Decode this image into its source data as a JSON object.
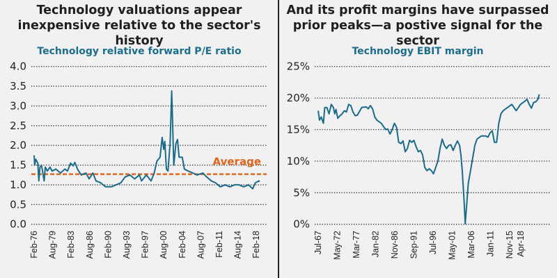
{
  "chart_data": [
    {
      "type": "line",
      "title": "Technology valuations appear inexpensive relative to the sector's history",
      "subtitle": "Technology relative forward P/E ratio",
      "xlabel": "",
      "ylabel": "",
      "ylim": [
        0,
        4
      ],
      "yticks": [
        "0.0",
        "0.5",
        "1.0",
        "1.5",
        "2.0",
        "2.5",
        "3.0",
        "3.5",
        "4.0"
      ],
      "xticks": [
        "Feb-76",
        "Aug-79",
        "Feb-83",
        "Aug-86",
        "Feb-90",
        "Aug-93",
        "Feb-97",
        "Aug-00",
        "Feb-04",
        "Aug-07",
        "Feb-11",
        "Aug-14",
        "Feb-18"
      ],
      "grid": true,
      "color": "#1b6a8a",
      "reference_line": {
        "label": "Average",
        "value": 1.27,
        "color": "#e0661f"
      },
      "series": [
        {
          "name": "Technology relative forward P/E ratio",
          "x": [
            1976.1,
            1976.2,
            1976.4,
            1976.8,
            1977.0,
            1977.2,
            1977.5,
            1978.0,
            1978.2,
            1978.6,
            1979.1,
            1979.5,
            1980.2,
            1981.1,
            1981.9,
            1982.4,
            1983.0,
            1983.5,
            1983.8,
            1984.3,
            1985.0,
            1985.9,
            1986.5,
            1987.2,
            1987.8,
            1988.7,
            1989.6,
            1990.7,
            1991.6,
            1992.5,
            1993.3,
            1994.2,
            1995.1,
            1996.0,
            1996.4,
            1997.3,
            1998.2,
            1998.8,
            1999.3,
            1999.9,
            2000.3,
            2000.6,
            2000.8,
            2001.1,
            2001.4,
            2001.8,
            2002.1,
            2002.5,
            2002.9,
            2003.2,
            2003.5,
            2004.1,
            2004.5,
            2005.2,
            2006.1,
            2006.9,
            2008.0,
            2008.7,
            2009.6,
            2010.4,
            2011.3,
            2012.2,
            2013.1,
            2014.0,
            2014.8,
            2015.7,
            2016.6,
            2017.4,
            2017.9,
            2018.6,
            2018.7
          ],
          "y": [
            1.75,
            1.5,
            1.65,
            1.55,
            1.1,
            1.45,
            1.5,
            1.1,
            1.45,
            1.35,
            1.45,
            1.35,
            1.4,
            1.3,
            1.4,
            1.35,
            1.55,
            1.48,
            1.57,
            1.4,
            1.25,
            1.3,
            1.15,
            1.3,
            1.1,
            1.05,
            0.95,
            0.95,
            1.0,
            1.05,
            1.2,
            1.25,
            1.15,
            1.25,
            1.1,
            1.25,
            1.1,
            1.3,
            1.6,
            1.7,
            2.2,
            1.9,
            2.1,
            1.4,
            1.35,
            2.05,
            3.38,
            1.5,
            2.05,
            2.15,
            1.7,
            1.7,
            1.4,
            1.35,
            1.3,
            1.25,
            1.3,
            1.2,
            1.1,
            1.05,
            0.95,
            1.0,
            0.95,
            1.0,
            1.0,
            0.95,
            1.0,
            0.9,
            1.05,
            1.1,
            1.08
          ]
        }
      ]
    },
    {
      "type": "line",
      "title": "And its profit margins have surpassed prior peaks—a postive signal for the sector",
      "subtitle": "Technology EBIT margin",
      "xlabel": "",
      "ylabel": "",
      "ylim": [
        0,
        25
      ],
      "yticks": [
        "0%",
        "5%",
        "10%",
        "15%",
        "20%",
        "25%"
      ],
      "xticks": [
        "Jul-67",
        "May-72",
        "Mar-77",
        "Jan-82",
        "Nov-86",
        "Sep-91",
        "Jul-96",
        "May-01",
        "Mar-06",
        "Jan-11",
        "Nov-15",
        "Apr-18"
      ],
      "grid": true,
      "color": "#1b6a8a",
      "series": [
        {
          "name": "Technology EBIT margin (%)",
          "x": [
            1967.5,
            1967.8,
            1968.2,
            1968.7,
            1969,
            1969.5,
            1970,
            1970.5,
            1971,
            1971.3,
            1971.6,
            1972,
            1972.5,
            1973,
            1973.5,
            1974,
            1974.5,
            1975,
            1975.5,
            1976,
            1976.5,
            1977.5,
            1978.5,
            1979,
            1979.5,
            1980,
            1980.5,
            1981,
            1982,
            1982.5,
            1983,
            1983.5,
            1984,
            1984.5,
            1985,
            1985.5,
            1986,
            1986.5,
            1987,
            1987.5,
            1988,
            1988.5,
            1989,
            1989.5,
            1990,
            1990.5,
            1991,
            1991.5,
            1992,
            1992.5,
            1993,
            1993.5,
            1994,
            1995,
            1995.5,
            1996,
            1996.5,
            1997,
            1997.5,
            1998,
            1998.5,
            1999,
            1999.5,
            2000,
            2000.3,
            2000.6,
            2001,
            2001.3,
            2001.6,
            2002,
            2002.5,
            2003,
            2003.5,
            2004,
            2005,
            2006,
            2006.5,
            2007,
            2007.5,
            2008,
            2008.5,
            2009,
            2009.5,
            2010,
            2011,
            2012,
            2013,
            2014,
            2015,
            2015.5,
            2016,
            2016.5,
            2017,
            2017.5,
            2018,
            2018.3
          ],
          "y": [
            18,
            16.5,
            17,
            16,
            18.5,
            18.5,
            17.5,
            19,
            18.5,
            17.5,
            18.2,
            16.8,
            17.2,
            17.5,
            18,
            17.8,
            19,
            18.8,
            17.8,
            17.2,
            17.3,
            18.5,
            18.6,
            18.3,
            18.8,
            18.3,
            17,
            16.5,
            16,
            15.5,
            15,
            15.1,
            14.3,
            15,
            16,
            15.4,
            13,
            12.8,
            13.2,
            11.5,
            12,
            13.3,
            13,
            13.3,
            12.3,
            11.5,
            11.7,
            11,
            9,
            8.5,
            8.8,
            8.5,
            8,
            10,
            12,
            13.5,
            12.5,
            12,
            12.5,
            12.6,
            11.7,
            12.5,
            13.2,
            12.5,
            11,
            8.5,
            4,
            0.1,
            2.8,
            6.5,
            8.5,
            10.5,
            12.5,
            13.5,
            14,
            14,
            13.8,
            14.5,
            14.8,
            13,
            13,
            16,
            17.5,
            18,
            18.5,
            19,
            18,
            19,
            19.5,
            19.8,
            19,
            18.4,
            19.3,
            19.4,
            19.8,
            20.6
          ]
        }
      ]
    }
  ]
}
